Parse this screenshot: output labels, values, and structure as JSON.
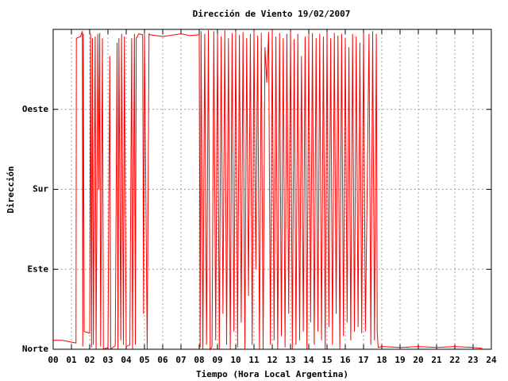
{
  "chart_data": {
    "type": "line",
    "title": "Dirección de Viento 19/02/2007",
    "xlabel": "Tiempo (Hora Local Argentina)",
    "ylabel": "Dirección",
    "xlim": [
      0,
      24
    ],
    "ylim": [
      0,
      360
    ],
    "xticks": [
      {
        "value": 0,
        "label": "00"
      },
      {
        "value": 1,
        "label": "01"
      },
      {
        "value": 2,
        "label": "02"
      },
      {
        "value": 3,
        "label": "03"
      },
      {
        "value": 4,
        "label": "04"
      },
      {
        "value": 5,
        "label": "05"
      },
      {
        "value": 6,
        "label": "06"
      },
      {
        "value": 7,
        "label": "07"
      },
      {
        "value": 8,
        "label": "08"
      },
      {
        "value": 9,
        "label": "09"
      },
      {
        "value": 10,
        "label": "10"
      },
      {
        "value": 11,
        "label": "11"
      },
      {
        "value": 12,
        "label": "12"
      },
      {
        "value": 13,
        "label": "13"
      },
      {
        "value": 14,
        "label": "14"
      },
      {
        "value": 15,
        "label": "15"
      },
      {
        "value": 16,
        "label": "16"
      },
      {
        "value": 17,
        "label": "17"
      },
      {
        "value": 18,
        "label": "18"
      },
      {
        "value": 19,
        "label": "19"
      },
      {
        "value": 20,
        "label": "20"
      },
      {
        "value": 21,
        "label": "21"
      },
      {
        "value": 22,
        "label": "22"
      },
      {
        "value": 23,
        "label": "23"
      },
      {
        "value": 24,
        "label": "24"
      }
    ],
    "yticks": [
      {
        "value": 0,
        "label": "Norte"
      },
      {
        "value": 90,
        "label": "Este"
      },
      {
        "value": 180,
        "label": "Sur"
      },
      {
        "value": 270,
        "label": "Oeste"
      }
    ],
    "grid": true,
    "series": [
      {
        "color": "#ff0000",
        "x": [
          0,
          0.5,
          1.0,
          1.25,
          1.27,
          1.5,
          1.6,
          1.62,
          1.65,
          1.7,
          2.0,
          2.05,
          2.1,
          2.15,
          2.2,
          2.3,
          2.35,
          2.45,
          2.5,
          2.55,
          2.6,
          2.7,
          2.75,
          3.0,
          3.1,
          3.15,
          3.4,
          3.5,
          3.55,
          3.6,
          3.7,
          3.75,
          3.85,
          3.9,
          4.0,
          4.2,
          4.3,
          4.35,
          4.45,
          4.5,
          4.55,
          4.7,
          4.9,
          4.95,
          5.0,
          5.15,
          5.25,
          5.3,
          6.0,
          7.0,
          7.5,
          8.0,
          8.05,
          8.1,
          8.2,
          8.3,
          8.4,
          8.5,
          8.6,
          8.7,
          8.8,
          8.9,
          9.0,
          9.1,
          9.2,
          9.3,
          9.4,
          9.5,
          9.6,
          9.7,
          9.8,
          9.9,
          10.0,
          10.1,
          10.2,
          10.3,
          10.4,
          10.5,
          10.6,
          10.7,
          10.8,
          10.9,
          11.0,
          11.1,
          11.2,
          11.3,
          11.4,
          11.5,
          11.6,
          11.7,
          11.8,
          11.9,
          12.0,
          12.1,
          12.2,
          12.3,
          12.4,
          12.5,
          12.6,
          12.7,
          12.8,
          12.9,
          13.0,
          13.1,
          13.2,
          13.3,
          13.4,
          13.5,
          13.6,
          13.7,
          13.8,
          13.9,
          14.0,
          14.1,
          14.2,
          14.3,
          14.4,
          14.5,
          14.6,
          14.7,
          14.8,
          14.9,
          15.0,
          15.1,
          15.2,
          15.3,
          15.4,
          15.5,
          15.6,
          15.7,
          15.8,
          15.9,
          16.0,
          16.1,
          16.2,
          16.3,
          16.4,
          16.5,
          16.6,
          16.7,
          16.8,
          16.9,
          17.0,
          17.1,
          17.2,
          17.3,
          17.4,
          17.5,
          17.6,
          17.7,
          17.75,
          17.8,
          18,
          19,
          20,
          21,
          22,
          23,
          23.5
        ],
        "values": [
          10,
          10,
          8,
          7,
          350,
          352,
          358,
          3,
          355,
          20,
          18,
          355,
          2,
          350,
          5,
          352,
          0,
          355,
          180,
          356,
          3,
          350,
          0,
          2,
          330,
          0,
          4,
          345,
          0,
          350,
          10,
          355,
          5,
          352,
          3,
          5,
          350,
          0,
          355,
          5,
          350,
          355,
          354,
          40,
          356,
          0,
          355,
          354,
          352,
          355,
          353,
          354,
          2,
          358,
          0,
          355,
          5,
          359,
          0,
          3,
          358,
          10,
          355,
          0,
          352,
          40,
          359,
          5,
          350,
          0,
          356,
          20,
          358,
          2,
          354,
          30,
          357,
          0,
          350,
          60,
          355,
          5,
          358,
          90,
          353,
          0,
          356,
          0,
          340,
          300,
          357,
          5,
          359,
          10,
          352,
          0,
          356,
          15,
          350,
          2,
          355,
          40,
          358,
          0,
          349,
          5,
          355,
          10,
          330,
          20,
          352,
          0,
          354,
          30,
          356,
          5,
          350,
          20,
          355,
          10,
          352,
          0,
          357,
          25,
          350,
          5,
          356,
          40,
          353,
          0,
          355,
          15,
          350,
          30,
          340,
          10,
          355,
          20,
          352,
          25,
          345,
          18,
          356,
          20,
          180,
          355,
          5,
          358,
          10,
          355,
          20,
          2,
          3,
          2,
          3,
          2,
          3,
          2,
          1
        ]
      }
    ]
  }
}
